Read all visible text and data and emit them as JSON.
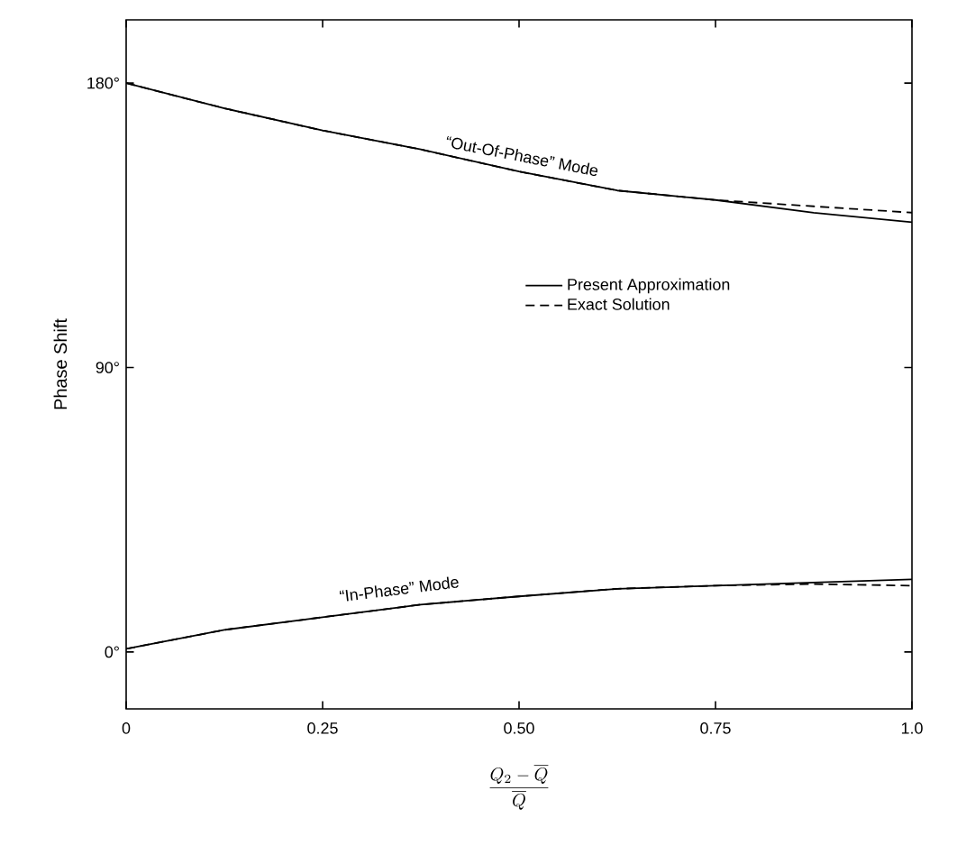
{
  "chart_data": {
    "type": "line",
    "xlabel": "\\frac{Q_2 - \\overline{Q}}{\\overline{Q}}",
    "ylabel": "Phase Shift",
    "xlim": [
      0,
      1.0
    ],
    "ylim": [
      -18,
      200
    ],
    "xticks": [
      0,
      0.25,
      {
        "value": 0.5,
        "label": "0.50"
      },
      0.75,
      {
        "value": 1.0,
        "label": "1.0"
      }
    ],
    "yticks": [
      {
        "value": 0,
        "label": "0°"
      },
      {
        "value": 90,
        "label": "90°"
      },
      {
        "value": 180,
        "label": "180°"
      }
    ],
    "legend": "center",
    "grid": false,
    "marker": "none",
    "series": [
      {
        "name": "Present Approximation",
        "color": "#000000",
        "line_style": "solid",
        "x": [
          0,
          0.125,
          0.25,
          0.375,
          0.5,
          0.625,
          0.75,
          0.875,
          1.0
        ],
        "values": [
          180,
          172,
          165,
          159,
          152,
          146,
          143,
          139,
          136
        ]
      },
      {
        "name": "Exact Solution",
        "color": "#000000",
        "line_style": "dashed",
        "x": [
          0,
          0.125,
          0.25,
          0.375,
          0.5,
          0.625,
          0.75,
          0.875,
          1.0
        ],
        "values": [
          180,
          172,
          165,
          159,
          152,
          146,
          143,
          141,
          139
        ]
      },
      {
        "color": "#000000",
        "line_style": "solid",
        "x": [
          0,
          0.125,
          0.25,
          0.375,
          0.5,
          0.625,
          0.75,
          0.875,
          1.0
        ],
        "values": [
          1,
          7,
          11,
          15,
          17.6,
          20,
          21,
          22,
          23
        ]
      },
      {
        "color": "#000000",
        "line_style": "dashed",
        "x": [
          0,
          0.125,
          0.25,
          0.375,
          0.5,
          0.625,
          0.75,
          0.875,
          1.0
        ],
        "values": [
          1,
          7,
          11,
          15,
          17.6,
          20,
          21,
          21.5,
          21
        ]
      }
    ],
    "annotations": [
      {
        "text": "“Out-Of-Phase” Mode",
        "x": 0.5,
        "y": 152
      },
      {
        "text": "“In-Phase” Mode",
        "x": 0.35,
        "y": 15
      }
    ]
  }
}
